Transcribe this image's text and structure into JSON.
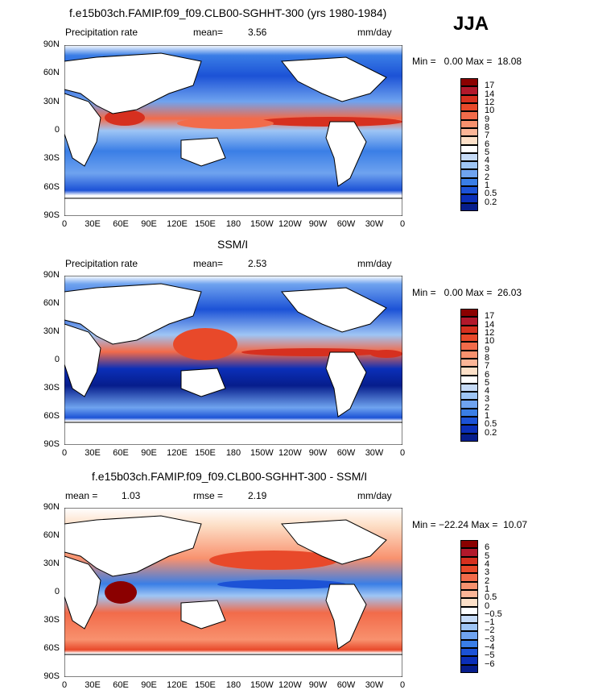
{
  "season": "JJA",
  "lat_labels": [
    "90N",
    "60N",
    "30N",
    "0",
    "30S",
    "60S",
    "90S"
  ],
  "lon_labels": [
    "0",
    "30E",
    "60E",
    "90E",
    "120E",
    "150E",
    "180",
    "150W",
    "120W",
    "90W",
    "60W",
    "30W",
    "0"
  ],
  "panels": [
    {
      "title": "f.e15b03ch.FAMIP.f09_f09.CLB00-SGHHT-300 (yrs 1980-1984)",
      "left_label": "Precipitation rate",
      "center_label": "mean=",
      "center_value": "3.56",
      "units": "mm/day",
      "minmax": "Min =   0.00 Max =  18.08",
      "colorbar": {
        "labels": [
          "17",
          "14",
          "12",
          "10",
          "9",
          "8",
          "7",
          "6",
          "5",
          "4",
          "3",
          "2",
          "1",
          "0.5",
          "0.2"
        ],
        "colors": [
          "#8b0000",
          "#b2182b",
          "#d6301f",
          "#e8492a",
          "#f26b4a",
          "#f8916e",
          "#fbb597",
          "#fde0c8",
          "#ffffff",
          "#c6dbf7",
          "#9ec5f5",
          "#6fa3ef",
          "#3a7ee6",
          "#1c52d6",
          "#0b2fb8",
          "#061d8c"
        ]
      }
    },
    {
      "title": "SSM/I",
      "left_label": "Precipitation rate",
      "center_label": "mean=",
      "center_value": "2.53",
      "units": "mm/day",
      "minmax": "Min =   0.00 Max =  26.03",
      "colorbar": {
        "labels": [
          "17",
          "14",
          "12",
          "10",
          "9",
          "8",
          "7",
          "6",
          "5",
          "4",
          "3",
          "2",
          "1",
          "0.5",
          "0.2"
        ],
        "colors": [
          "#8b0000",
          "#b2182b",
          "#d6301f",
          "#e8492a",
          "#f26b4a",
          "#f8916e",
          "#fbb597",
          "#fde0c8",
          "#ffffff",
          "#c6dbf7",
          "#9ec5f5",
          "#6fa3ef",
          "#3a7ee6",
          "#1c52d6",
          "#0b2fb8",
          "#061d8c"
        ]
      }
    },
    {
      "title": "f.e15b03ch.FAMIP.f09_f09.CLB00-SGHHT-300 - SSM/I",
      "left_label": "mean =",
      "left_value": "1.03",
      "center_label": "rmse =",
      "center_value": "2.19",
      "units": "mm/day",
      "minmax": "Min = −22.24 Max =  10.07",
      "colorbar": {
        "labels": [
          "6",
          "5",
          "4",
          "3",
          "2",
          "1",
          "0.5",
          "0",
          "−0.5",
          "−1",
          "−2",
          "−3",
          "−4",
          "−5",
          "−6"
        ],
        "colors": [
          "#8b0000",
          "#b2182b",
          "#d6301f",
          "#e8492a",
          "#f26b4a",
          "#f8916e",
          "#fbb597",
          "#fde0c8",
          "#ffffff",
          "#c6dbf7",
          "#9ec5f5",
          "#6fa3ef",
          "#3a7ee6",
          "#1c52d6",
          "#0b2fb8",
          "#061d8c"
        ]
      }
    }
  ],
  "colors": {
    "land": "#ffffff",
    "ocean_dry": "#1c52d6",
    "ocean_wet": "#d6301f",
    "missing": "#ffffff"
  }
}
